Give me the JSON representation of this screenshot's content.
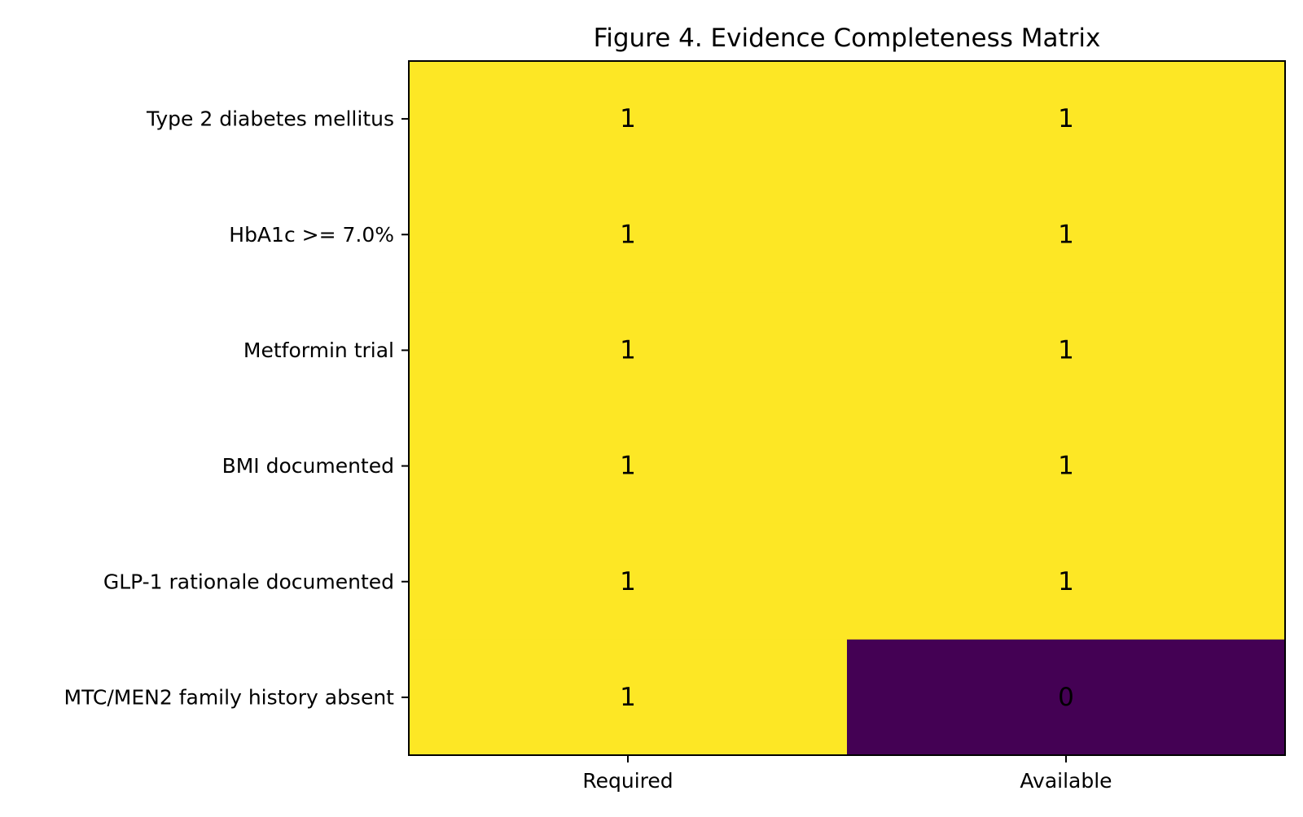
{
  "chart_data": {
    "type": "heatmap",
    "title": "Figure 4. Evidence Completeness Matrix",
    "rows": [
      "Type 2 diabetes mellitus",
      "HbA1c >= 7.0%",
      "Metformin trial",
      "BMI documented",
      "GLP-1 rationale documented",
      "MTC/MEN2 family history absent"
    ],
    "columns": [
      "Required",
      "Available"
    ],
    "values": [
      [
        1,
        1
      ],
      [
        1,
        1
      ],
      [
        1,
        1
      ],
      [
        1,
        1
      ],
      [
        1,
        1
      ],
      [
        1,
        0
      ]
    ],
    "value_range": [
      0,
      1
    ],
    "colormap": "viridis",
    "colors": {
      "low": "#440154",
      "high": "#fde725",
      "frame": "#000000"
    },
    "grid": false,
    "legend": "none"
  }
}
